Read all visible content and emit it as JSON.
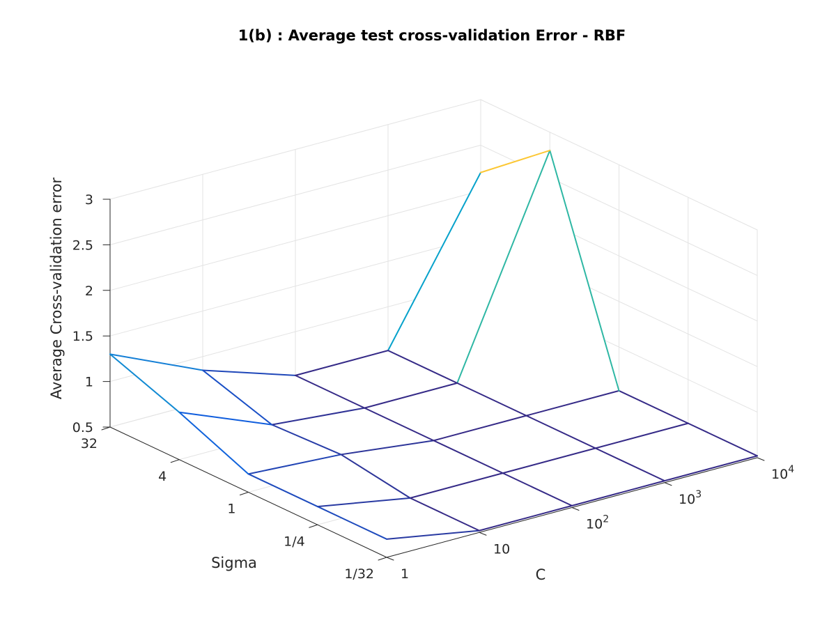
{
  "chart_data": {
    "type": "mesh3d",
    "title": "1(b) : Average test cross-validation Error - RBF",
    "xlabel": "C",
    "ylabel": "Sigma",
    "zlabel": "Average Cross-validation error",
    "x": [
      "1",
      "10",
      "10^2",
      "10^3",
      "10^4"
    ],
    "x_tick_labels": [
      {
        "base": "1",
        "exp": ""
      },
      {
        "base": "10",
        "exp": ""
      },
      {
        "base": "10",
        "exp": "2"
      },
      {
        "base": "10",
        "exp": "3"
      },
      {
        "base": "10",
        "exp": "4"
      }
    ],
    "y": [
      "1/32",
      "1/4",
      "1",
      "4",
      "32"
    ],
    "zlim": [
      0.5,
      3
    ],
    "z_ticks": [
      "0.5",
      "1",
      "1.5",
      "2",
      "2.5",
      "3"
    ],
    "z_rows_by_sigma": [
      [
        0.7,
        0.52,
        0.52,
        0.52,
        0.52
      ],
      [
        0.7,
        0.52,
        0.52,
        0.52,
        0.52
      ],
      [
        0.7,
        0.64,
        0.52,
        0.52,
        0.52
      ],
      [
        1.02,
        0.61,
        0.52,
        0.52,
        2.8
      ],
      [
        1.3,
        0.85,
        0.52,
        0.52,
        2.2
      ]
    ],
    "colormap": [
      "#352a87",
      "#0f5cdd",
      "#1481d6",
      "#06a4ca",
      "#2eb7a4",
      "#87bf77",
      "#d1bb59",
      "#fec832",
      "#f9fb0e"
    ],
    "grid": true
  }
}
